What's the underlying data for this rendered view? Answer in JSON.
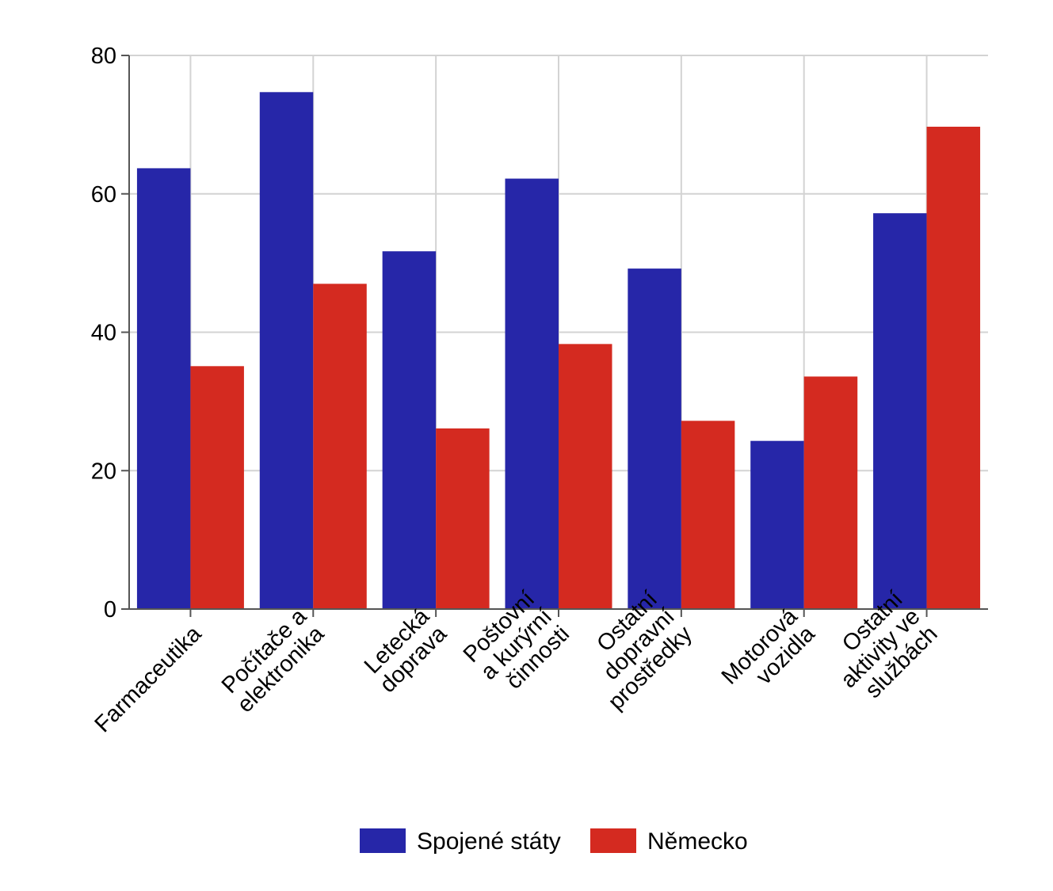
{
  "chart_data": {
    "type": "bar",
    "title": "",
    "xlabel": "",
    "ylabel": "",
    "ylim": [
      0,
      80
    ],
    "yticks": [
      0,
      20,
      40,
      60,
      80
    ],
    "grid": true,
    "legend_position": "bottom",
    "categories": [
      [
        "Farmaceutika"
      ],
      [
        "Počítače a",
        "elektronika"
      ],
      [
        "Letecká",
        "doprava"
      ],
      [
        "Poštovní",
        "a kurýrní",
        "činnosti"
      ],
      [
        "Ostatní",
        "dopravní",
        "prostředky"
      ],
      [
        "Motorová",
        "vozidla"
      ],
      [
        "Ostatní",
        "aktivity ve",
        "službách"
      ]
    ],
    "series": [
      {
        "name": "Spojené státy",
        "color": "#2626a8",
        "values": [
          63.7,
          74.7,
          51.7,
          62.2,
          49.2,
          24.3,
          57.2
        ]
      },
      {
        "name": "Německo",
        "color": "#d42a20",
        "values": [
          35.1,
          47.0,
          26.1,
          38.3,
          27.2,
          33.6,
          69.7
        ]
      }
    ]
  }
}
